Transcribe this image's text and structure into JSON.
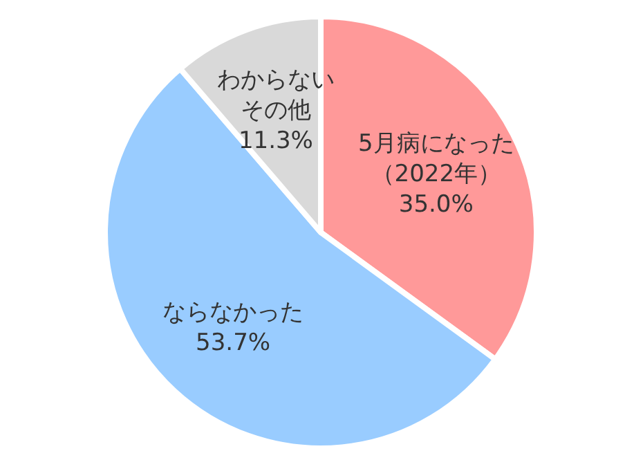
{
  "chart_data": {
    "type": "pie",
    "categories": [
      "5月病になった（2022年）",
      "ならなかった",
      "わからないその他"
    ],
    "values": [
      35.0,
      53.7,
      11.3
    ],
    "colors": [
      "#ff9999",
      "#99ccff",
      "#d9d9d9"
    ],
    "value_labels": [
      "35.0%",
      "53.7%",
      "11.3%"
    ]
  }
}
